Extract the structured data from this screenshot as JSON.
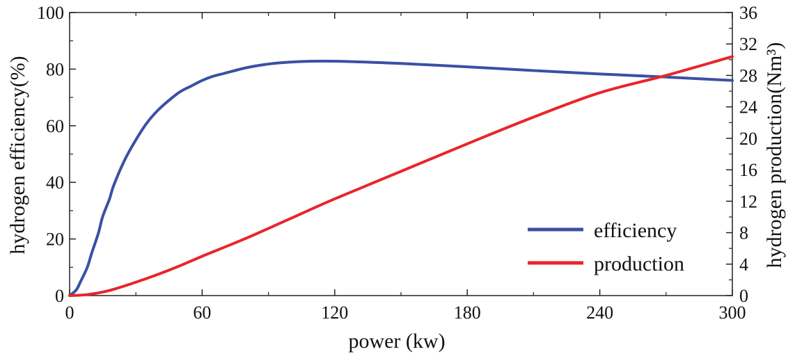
{
  "chart_data": {
    "type": "line",
    "title": "",
    "xlabel": "power (kw)",
    "ylabel_left": "hydrogen efficiency(%)",
    "ylabel_right": "hydrogen production(Nm³)",
    "xlim": [
      0,
      300
    ],
    "ylim_left": [
      0,
      100
    ],
    "ylim_right": [
      0,
      36
    ],
    "x_ticks": [
      0,
      60,
      120,
      180,
      240,
      300
    ],
    "y_left_ticks": [
      0,
      20,
      40,
      60,
      80,
      100
    ],
    "y_right_ticks": [
      0,
      4,
      8,
      12,
      16,
      20,
      24,
      28,
      32,
      36
    ],
    "grid": false,
    "legend_position": "bottom-right",
    "series": [
      {
        "name": "efficiency",
        "axis": "left",
        "color": "#3a50a4",
        "x": [
          0,
          3,
          5,
          8,
          10,
          13,
          15,
          18,
          20,
          25,
          30,
          35,
          40,
          45,
          50,
          55,
          60,
          65,
          70,
          80,
          90,
          100,
          110,
          120,
          130,
          150,
          180,
          210,
          240,
          270,
          300
        ],
        "y": [
          0,
          2,
          5,
          10,
          15,
          22,
          28,
          34,
          39,
          48,
          55,
          61,
          65.5,
          69,
          72,
          74,
          76,
          77.5,
          78.5,
          80.5,
          81.8,
          82.5,
          82.8,
          82.8,
          82.6,
          82,
          80.8,
          79.5,
          78.3,
          77.2,
          76
        ]
      },
      {
        "name": "production",
        "axis": "right",
        "color": "#e8262b",
        "x": [
          0,
          5,
          10,
          15,
          20,
          30,
          40,
          50,
          60,
          80,
          100,
          120,
          150,
          180,
          210,
          240,
          270,
          300
        ],
        "y": [
          0,
          0.05,
          0.2,
          0.45,
          0.8,
          1.7,
          2.7,
          3.8,
          5,
          7.3,
          9.8,
          12.3,
          15.8,
          19.3,
          22.7,
          25.8,
          28,
          30.4
        ]
      }
    ],
    "legend": [
      "efficiency",
      "production"
    ]
  }
}
